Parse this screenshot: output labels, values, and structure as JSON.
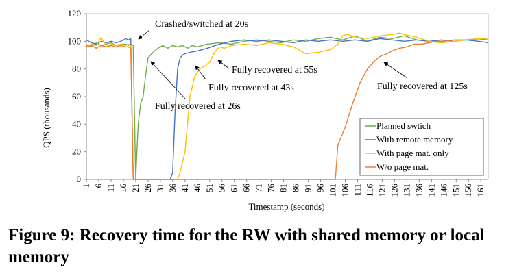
{
  "chart_data": {
    "type": "line",
    "xlabel": "Timestamp (seconds)",
    "ylabel": "QPS (thousands)",
    "ylim": [
      0,
      120
    ],
    "xlim": [
      1,
      164
    ],
    "yticks": [
      0,
      20,
      40,
      60,
      80,
      100,
      120
    ],
    "x_tick_start": 1,
    "x_tick_step": 5,
    "x_tick_end": 161,
    "grid": false,
    "legend_position": "bottom-right",
    "series": [
      {
        "name": "Planned swtich",
        "color": "#70ad47",
        "points": [
          [
            1,
            97
          ],
          [
            3,
            96
          ],
          [
            5,
            99
          ],
          [
            7,
            97
          ],
          [
            9,
            98
          ],
          [
            11,
            99
          ],
          [
            13,
            97
          ],
          [
            15,
            98
          ],
          [
            17,
            98
          ],
          [
            18,
            97
          ],
          [
            19,
            98
          ],
          [
            20,
            97
          ],
          [
            21,
            0
          ],
          [
            22,
            40
          ],
          [
            23,
            55
          ],
          [
            24,
            60
          ],
          [
            25,
            75
          ],
          [
            26,
            88
          ],
          [
            27,
            90
          ],
          [
            28,
            92
          ],
          [
            30,
            95
          ],
          [
            32,
            97
          ],
          [
            34,
            95
          ],
          [
            36,
            97
          ],
          [
            38,
            96
          ],
          [
            40,
            97
          ],
          [
            42,
            95
          ],
          [
            44,
            97
          ],
          [
            46,
            96
          ],
          [
            50,
            98
          ],
          [
            55,
            99
          ],
          [
            60,
            98
          ],
          [
            65,
            100
          ],
          [
            70,
            101
          ],
          [
            75,
            100
          ],
          [
            80,
            99
          ],
          [
            85,
            101
          ],
          [
            90,
            100
          ],
          [
            95,
            102
          ],
          [
            100,
            103
          ],
          [
            105,
            101
          ],
          [
            110,
            104
          ],
          [
            115,
            100
          ],
          [
            120,
            103
          ],
          [
            125,
            102
          ],
          [
            130,
            104
          ],
          [
            135,
            101
          ],
          [
            140,
            100
          ],
          [
            145,
            99
          ],
          [
            150,
            100
          ],
          [
            155,
            101
          ],
          [
            160,
            102
          ],
          [
            164,
            101
          ]
        ]
      },
      {
        "name": "With remote memory",
        "color": "#4472c4",
        "points": [
          [
            1,
            101
          ],
          [
            3,
            99
          ],
          [
            5,
            98
          ],
          [
            7,
            100
          ],
          [
            9,
            99
          ],
          [
            11,
            100
          ],
          [
            13,
            99
          ],
          [
            15,
            100
          ],
          [
            17,
            102
          ],
          [
            18,
            101
          ],
          [
            19,
            102
          ],
          [
            20,
            0
          ],
          [
            21,
            0
          ],
          [
            25,
            0
          ],
          [
            30,
            0
          ],
          [
            35,
            0
          ],
          [
            36,
            5
          ],
          [
            37,
            50
          ],
          [
            38,
            80
          ],
          [
            39,
            88
          ],
          [
            40,
            90
          ],
          [
            41,
            91
          ],
          [
            43,
            92
          ],
          [
            46,
            93
          ],
          [
            50,
            95
          ],
          [
            55,
            98
          ],
          [
            60,
            100
          ],
          [
            65,
            101
          ],
          [
            70,
            100
          ],
          [
            75,
            101
          ],
          [
            80,
            100
          ],
          [
            85,
            99
          ],
          [
            90,
            101
          ],
          [
            95,
            100
          ],
          [
            100,
            101
          ],
          [
            105,
            100
          ],
          [
            110,
            101
          ],
          [
            115,
            100
          ],
          [
            120,
            102
          ],
          [
            125,
            101
          ],
          [
            130,
            100
          ],
          [
            135,
            101
          ],
          [
            140,
            100
          ],
          [
            145,
            101
          ],
          [
            150,
            100
          ],
          [
            155,
            101
          ],
          [
            160,
            100
          ],
          [
            164,
            99
          ]
        ]
      },
      {
        "name": "With page mat. only",
        "color": "#ffc000",
        "points": [
          [
            1,
            96
          ],
          [
            3,
            98
          ],
          [
            5,
            97
          ],
          [
            7,
            103
          ],
          [
            9,
            96
          ],
          [
            11,
            98
          ],
          [
            13,
            97
          ],
          [
            15,
            98
          ],
          [
            17,
            97
          ],
          [
            18,
            98
          ],
          [
            19,
            97
          ],
          [
            20,
            0
          ],
          [
            25,
            0
          ],
          [
            30,
            0
          ],
          [
            35,
            0
          ],
          [
            38,
            0
          ],
          [
            39,
            5
          ],
          [
            41,
            20
          ],
          [
            43,
            60
          ],
          [
            45,
            75
          ],
          [
            47,
            80
          ],
          [
            49,
            82
          ],
          [
            51,
            85
          ],
          [
            53,
            92
          ],
          [
            55,
            96
          ],
          [
            57,
            95
          ],
          [
            60,
            97
          ],
          [
            65,
            98
          ],
          [
            70,
            97
          ],
          [
            75,
            99
          ],
          [
            80,
            98
          ],
          [
            85,
            96
          ],
          [
            90,
            91
          ],
          [
            95,
            92
          ],
          [
            100,
            94
          ],
          [
            103,
            98
          ],
          [
            105,
            104
          ],
          [
            107,
            105
          ],
          [
            110,
            103
          ],
          [
            115,
            102
          ],
          [
            120,
            104
          ],
          [
            125,
            105
          ],
          [
            128,
            106
          ],
          [
            130,
            105
          ],
          [
            135,
            103
          ],
          [
            140,
            100
          ],
          [
            145,
            99
          ],
          [
            150,
            100
          ],
          [
            155,
            101
          ],
          [
            160,
            102
          ],
          [
            164,
            102
          ]
        ]
      },
      {
        "name": "W/o page mat.",
        "color": "#ed7d31",
        "points": [
          [
            1,
            96
          ],
          [
            3,
            97
          ],
          [
            5,
            95
          ],
          [
            7,
            97
          ],
          [
            9,
            96
          ],
          [
            11,
            97
          ],
          [
            13,
            96
          ],
          [
            15,
            97
          ],
          [
            17,
            96
          ],
          [
            18,
            96
          ],
          [
            19,
            95
          ],
          [
            20,
            0
          ],
          [
            30,
            0
          ],
          [
            40,
            0
          ],
          [
            50,
            0
          ],
          [
            60,
            0
          ],
          [
            70,
            0
          ],
          [
            80,
            0
          ],
          [
            90,
            0
          ],
          [
            100,
            0
          ],
          [
            102,
            0
          ],
          [
            103,
            25
          ],
          [
            106,
            38
          ],
          [
            109,
            55
          ],
          [
            112,
            70
          ],
          [
            115,
            80
          ],
          [
            118,
            86
          ],
          [
            120,
            89
          ],
          [
            123,
            91
          ],
          [
            125,
            93
          ],
          [
            128,
            95
          ],
          [
            131,
            96
          ],
          [
            134,
            98
          ],
          [
            137,
            98
          ],
          [
            140,
            99
          ],
          [
            143,
            100
          ],
          [
            146,
            100
          ],
          [
            150,
            101
          ],
          [
            155,
            101
          ],
          [
            160,
            101
          ],
          [
            164,
            101
          ]
        ]
      }
    ],
    "annotations": [
      {
        "text": "Crashed/switched at 20s",
        "arrow_to": [
          20,
          100
        ]
      },
      {
        "text": "Fully recovered at 55s",
        "arrow_to": [
          55,
          92
        ]
      },
      {
        "text": "Fully recovered at 43s",
        "arrow_to": [
          43,
          92
        ]
      },
      {
        "text": "Fully recovered at 26s",
        "arrow_to": [
          26,
          88
        ]
      },
      {
        "text": "Fully recovered at 125s",
        "arrow_to": [
          125,
          88
        ]
      }
    ]
  },
  "caption": "Figure 9: Recovery time for the RW with shared memory or local memory"
}
